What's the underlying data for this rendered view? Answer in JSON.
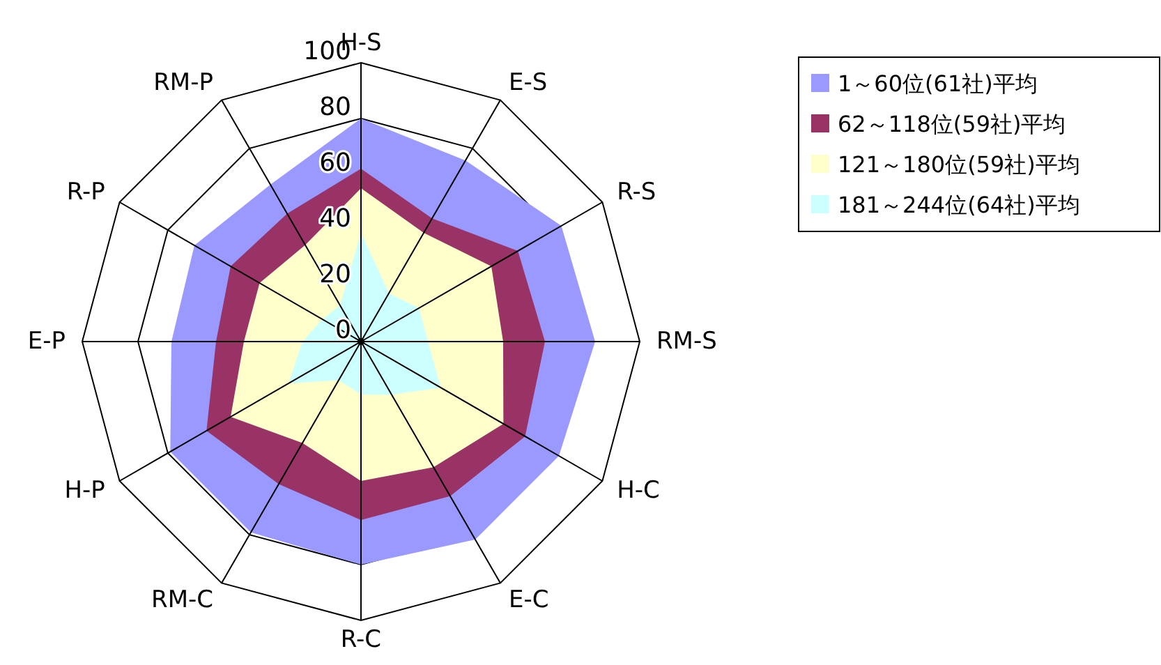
{
  "chart_data": {
    "type": "radar",
    "categories": [
      "H-S",
      "E-S",
      "R-S",
      "RM-S",
      "H-C",
      "E-C",
      "R-C",
      "RM-C",
      "H-P",
      "E-P",
      "R-P",
      "RM-P"
    ],
    "series": [
      {
        "name": "1～60位(61社)平均",
        "color": "#9999ff",
        "values": [
          80,
          75,
          83,
          84,
          82,
          82,
          80,
          79,
          79,
          68,
          69,
          65
        ]
      },
      {
        "name": "62～118位(59社)平均",
        "color": "#993366",
        "values": [
          62,
          51,
          65,
          66,
          68,
          64,
          64,
          59,
          64,
          52,
          54,
          53
        ]
      },
      {
        "name": "121～180位(59社)平均",
        "color": "#ffffcc",
        "values": [
          55,
          45,
          54,
          51,
          59,
          52,
          50,
          42,
          54,
          42,
          42,
          40
        ]
      },
      {
        "name": "181～244位(64社)平均",
        "color": "#ccffff",
        "values": [
          39,
          20,
          24,
          24,
          33,
          22,
          19,
          16,
          30,
          21,
          16,
          15
        ]
      }
    ],
    "ylim": [
      0,
      100
    ],
    "yticks": [
      0,
      20,
      40,
      60,
      80,
      100
    ],
    "grid": true,
    "legend": "top right"
  }
}
